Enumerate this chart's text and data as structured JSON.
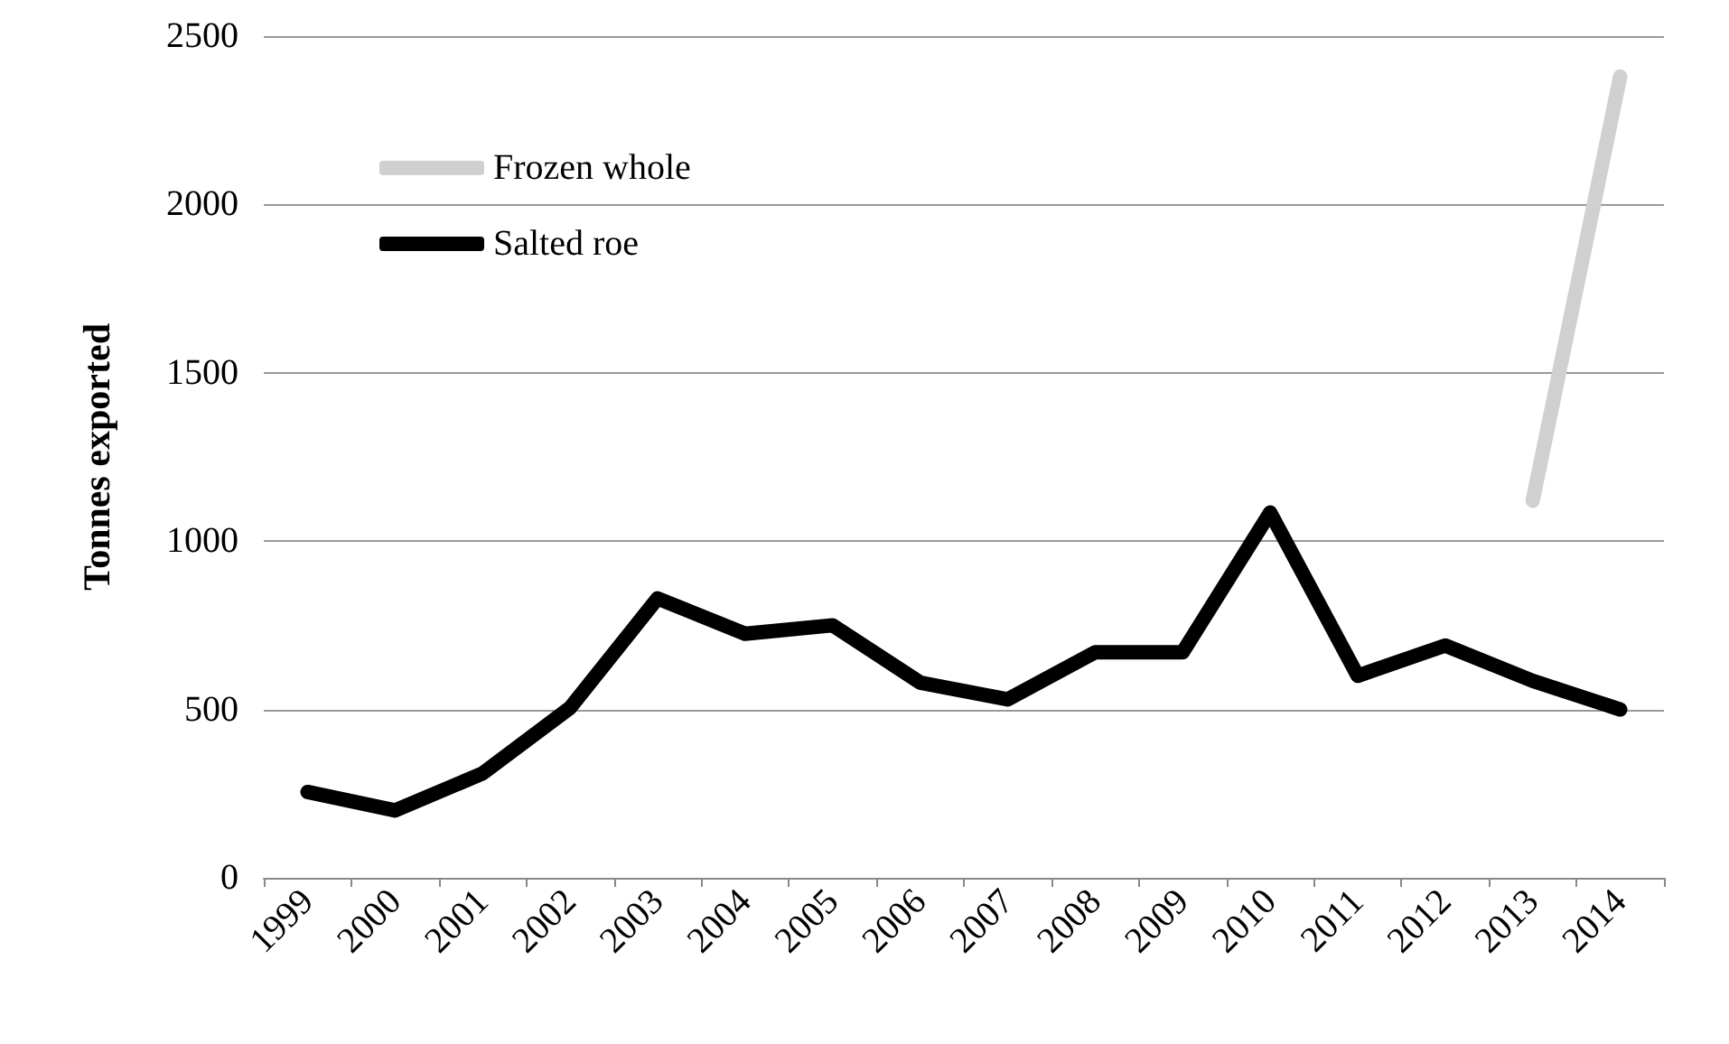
{
  "chart_data": {
    "type": "line",
    "ylabel": "Tonnes exported",
    "categories": [
      "1999",
      "2000",
      "2001",
      "2002",
      "2003",
      "2004",
      "2005",
      "2006",
      "2007",
      "2008",
      "2009",
      "2010",
      "2011",
      "2012",
      "2013",
      "2014"
    ],
    "series": [
      {
        "name": "Frozen whole",
        "color": "#d0d0d0",
        "values": [
          null,
          null,
          null,
          null,
          null,
          null,
          null,
          null,
          null,
          null,
          null,
          null,
          null,
          null,
          1120,
          2380
        ]
      },
      {
        "name": "Salted roe",
        "color": "#000000",
        "values": [
          255,
          200,
          310,
          505,
          830,
          725,
          750,
          580,
          530,
          670,
          670,
          1085,
          600,
          690,
          585,
          500
        ]
      }
    ],
    "ylim": [
      0,
      2500
    ],
    "yticks": [
      0,
      500,
      1000,
      1500,
      2000,
      2500
    ],
    "grid": "y",
    "legend": "top left",
    "line_style": "solid"
  }
}
